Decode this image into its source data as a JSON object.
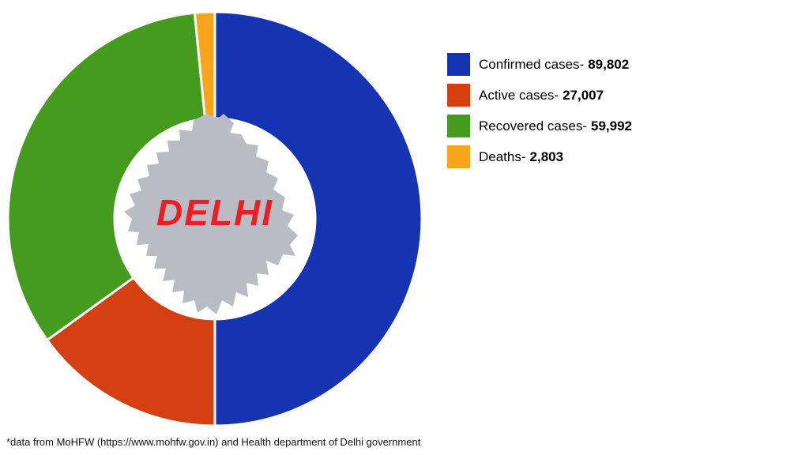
{
  "chart_data": {
    "type": "pie",
    "subtype": "donut",
    "title": "DELHI",
    "categories": [
      "Confirmed cases",
      "Active cases",
      "Recovered cases",
      "Deaths"
    ],
    "values": [
      89802,
      27007,
      59992,
      2803
    ],
    "display_values": [
      "89,802",
      "27,007",
      "59,992",
      "2,803"
    ],
    "colors": [
      "#1634b2",
      "#d54012",
      "#449b1e",
      "#f8a51b"
    ],
    "total": 179604,
    "start_angle_deg": -90,
    "direction": "clockwise",
    "inner_radius_ratio": 0.485,
    "legend_position": "right",
    "center_label": "DELHI",
    "grid": false
  },
  "legend": {
    "items": [
      {
        "label": "Confirmed cases-",
        "value": "89,802"
      },
      {
        "label": "Active cases-",
        "value": "27,007"
      },
      {
        "label": "Recovered cases-",
        "value": "59,992"
      },
      {
        "label": "Deaths-",
        "value": "2,803"
      }
    ]
  },
  "center": {
    "label": "DELHI",
    "map_color": "#b9bdc3",
    "label_color": "#ee1c23"
  },
  "footer": {
    "text": "*data from MoHFW (https://www.mohfw.gov.in) and Health department of Delhi government"
  }
}
